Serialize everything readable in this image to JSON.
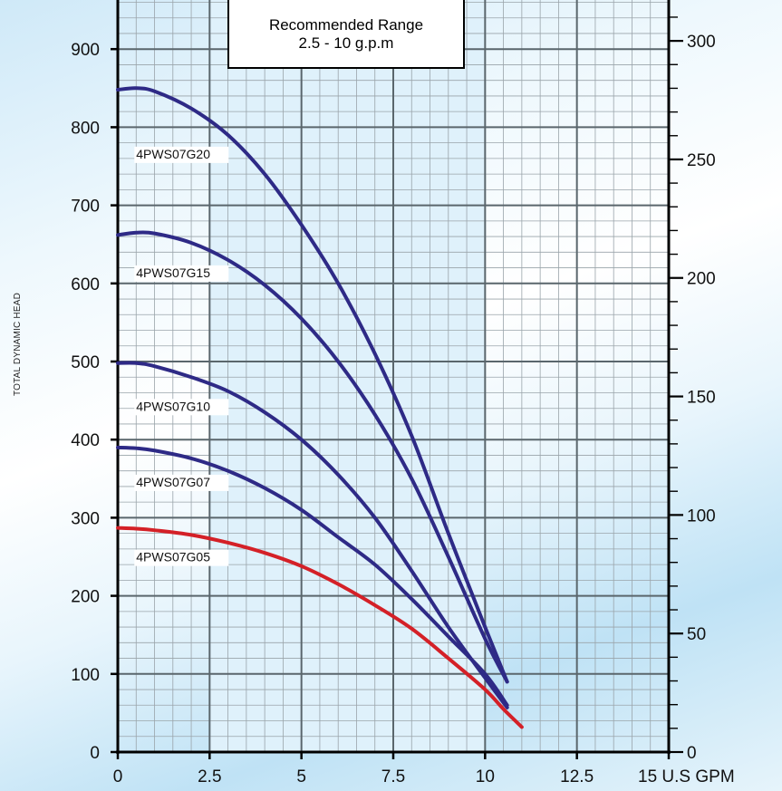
{
  "chart_data": {
    "type": "line",
    "title": "",
    "xlabel": "U.S GPM",
    "ylabel": "TOTAL DYNAMIC HEAD",
    "xlim": [
      0,
      15
    ],
    "ylim": [
      0,
      950
    ],
    "y2lim": [
      0,
      313
    ],
    "x_ticks": [
      {
        "value": 0,
        "label": "0"
      },
      {
        "value": 2.5,
        "label": "2.5"
      },
      {
        "value": 5,
        "label": "5"
      },
      {
        "value": 7.5,
        "label": "7.5"
      },
      {
        "value": 10,
        "label": "10"
      },
      {
        "value": 12.5,
        "label": "12.5"
      },
      {
        "value": 15,
        "label": "15 U.S GPM"
      }
    ],
    "y_ticks": [
      0,
      100,
      200,
      300,
      400,
      500,
      600,
      700,
      800,
      900
    ],
    "y2_ticks": [
      0,
      50,
      100,
      150,
      200,
      250,
      300
    ],
    "grid": true,
    "recommended_range": {
      "from": 2.5,
      "to": 10,
      "line1": "Recommended Range",
      "line2": "2.5 - 10 g.p.m"
    },
    "series": [
      {
        "name": "4PWS07G20",
        "color": "#2e2a86",
        "label_at": [
          0.5,
          760
        ],
        "points": [
          [
            0,
            848
          ],
          [
            0.5,
            850
          ],
          [
            1,
            846
          ],
          [
            2,
            824
          ],
          [
            3,
            790
          ],
          [
            4,
            740
          ],
          [
            5,
            675
          ],
          [
            6,
            600
          ],
          [
            7,
            510
          ],
          [
            8,
            405
          ],
          [
            9,
            280
          ],
          [
            10,
            160
          ],
          [
            10.6,
            90
          ]
        ]
      },
      {
        "name": "4PWS07G15",
        "color": "#2e2a86",
        "label_at": [
          0.5,
          608
        ],
        "points": [
          [
            0,
            662
          ],
          [
            0.5,
            665
          ],
          [
            1,
            664
          ],
          [
            2,
            652
          ],
          [
            3,
            630
          ],
          [
            4,
            598
          ],
          [
            5,
            555
          ],
          [
            6,
            500
          ],
          [
            7,
            432
          ],
          [
            8,
            350
          ],
          [
            9,
            250
          ],
          [
            10,
            145
          ],
          [
            10.6,
            90
          ]
        ]
      },
      {
        "name": "4PWS07G10",
        "color": "#2e2a86",
        "label_at": [
          0.5,
          437
        ],
        "points": [
          [
            0,
            498
          ],
          [
            0.5,
            498
          ],
          [
            1,
            494
          ],
          [
            2,
            480
          ],
          [
            3,
            462
          ],
          [
            4,
            435
          ],
          [
            5,
            400
          ],
          [
            6,
            355
          ],
          [
            7,
            300
          ],
          [
            8,
            232
          ],
          [
            9,
            160
          ],
          [
            10,
            95
          ],
          [
            10.6,
            57
          ]
        ]
      },
      {
        "name": "4PWS07G07",
        "color": "#2e2a86",
        "label_at": [
          0.5,
          340
        ],
        "points": [
          [
            0,
            390
          ],
          [
            0.5,
            389
          ],
          [
            1,
            386
          ],
          [
            2,
            376
          ],
          [
            3,
            360
          ],
          [
            4,
            338
          ],
          [
            5,
            310
          ],
          [
            6,
            275
          ],
          [
            7,
            240
          ],
          [
            8,
            196
          ],
          [
            9,
            148
          ],
          [
            10,
            100
          ],
          [
            10.6,
            60
          ]
        ]
      },
      {
        "name": "4PWS07G05",
        "color": "#d42027",
        "label_at": [
          0.5,
          244
        ],
        "points": [
          [
            0,
            287
          ],
          [
            0.5,
            286
          ],
          [
            1,
            284
          ],
          [
            2,
            278
          ],
          [
            3,
            268
          ],
          [
            4,
            255
          ],
          [
            5,
            238
          ],
          [
            6,
            215
          ],
          [
            7,
            188
          ],
          [
            8,
            158
          ],
          [
            9,
            120
          ],
          [
            10,
            80
          ],
          [
            10.5,
            55
          ],
          [
            11,
            32
          ]
        ]
      }
    ]
  }
}
